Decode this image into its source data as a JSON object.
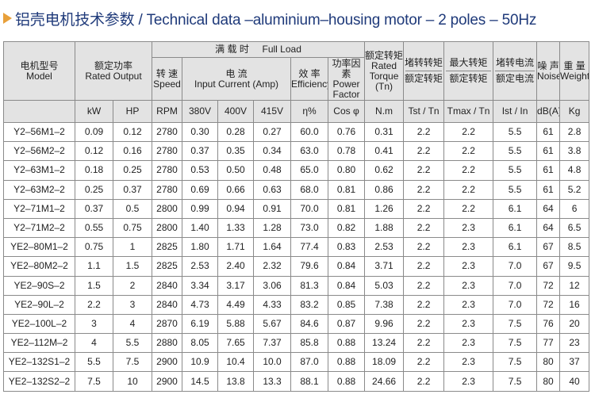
{
  "title": "铝壳电机技术参数 / Technical data –aluminium–housing motor – 2 poles – 50Hz",
  "header": {
    "model_cn": "电机型号",
    "model_en": "Model",
    "rated_output_cn": "额定功率",
    "rated_output_en": "Rated Output",
    "full_load_cn": "满 载 时",
    "full_load_en": "Full Load",
    "speed_cn": "转 速",
    "speed_en": "Speed",
    "current_cn": "电 流",
    "current_en": "Input  Current (Amp)",
    "efficiency_cn": "效 率",
    "efficiency_en": "Efficiency",
    "pf_cn": "功率因素",
    "pf_en": "Power Factor",
    "torque_cn": "额定转矩",
    "torque_en": "Rated Torque (Tn)",
    "locked_torque_cn": "堵转转矩",
    "locked_torque_cn2": "额定转矩",
    "max_torque_cn": "最大转矩",
    "max_torque_cn2": "额定转矩",
    "locked_current_cn": "堵转电流",
    "locked_current_cn2": "额定电流",
    "noise_cn": "噪 声",
    "noise_en": "Noise",
    "weight_cn": "重 量",
    "weight_en": "Weight"
  },
  "units": [
    "kW",
    "HP",
    "RPM",
    "380V",
    "400V",
    "415V",
    "η%",
    "Cos φ",
    "N.m",
    "Tst / Tn",
    "Tmax / Tn",
    "Ist / In",
    "dB(A)",
    "Kg"
  ],
  "rows": [
    [
      "Y2–56M1–2",
      "0.09",
      "0.12",
      "2780",
      "0.30",
      "0.28",
      "0.27",
      "60.0",
      "0.76",
      "0.31",
      "2.2",
      "2.2",
      "5.5",
      "61",
      "2.8"
    ],
    [
      "Y2–56M2–2",
      "0.12",
      "0.16",
      "2780",
      "0.37",
      "0.35",
      "0.34",
      "63.0",
      "0.78",
      "0.41",
      "2.2",
      "2.2",
      "5.5",
      "61",
      "3.8"
    ],
    [
      "Y2–63M1–2",
      "0.18",
      "0.25",
      "2780",
      "0.53",
      "0.50",
      "0.48",
      "65.0",
      "0.80",
      "0.62",
      "2.2",
      "2.2",
      "5.5",
      "61",
      "4.8"
    ],
    [
      "Y2–63M2–2",
      "0.25",
      "0.37",
      "2780",
      "0.69",
      "0.66",
      "0.63",
      "68.0",
      "0.81",
      "0.86",
      "2.2",
      "2.2",
      "5.5",
      "61",
      "5.2"
    ],
    [
      "Y2–71M1–2",
      "0.37",
      "0.5",
      "2800",
      "0.99",
      "0.94",
      "0.91",
      "70.0",
      "0.81",
      "1.26",
      "2.2",
      "2.2",
      "6.1",
      "64",
      "6"
    ],
    [
      "Y2–71M2–2",
      "0.55",
      "0.75",
      "2800",
      "1.40",
      "1.33",
      "1.28",
      "73.0",
      "0.82",
      "1.88",
      "2.2",
      "2.3",
      "6.1",
      "64",
      "6.5"
    ],
    [
      "YE2–80M1–2",
      "0.75",
      "1",
      "2825",
      "1.80",
      "1.71",
      "1.64",
      "77.4",
      "0.83",
      "2.53",
      "2.2",
      "2.3",
      "6.1",
      "67",
      "8.5"
    ],
    [
      "YE2–80M2–2",
      "1.1",
      "1.5",
      "2825",
      "2.53",
      "2.40",
      "2.32",
      "79.6",
      "0.84",
      "3.71",
      "2.2",
      "2.3",
      "7.0",
      "67",
      "9.5"
    ],
    [
      "YE2–90S–2",
      "1.5",
      "2",
      "2840",
      "3.34",
      "3.17",
      "3.06",
      "81.3",
      "0.84",
      "5.03",
      "2.2",
      "2.3",
      "7.0",
      "72",
      "12"
    ],
    [
      "YE2–90L–2",
      "2.2",
      "3",
      "2840",
      "4.73",
      "4.49",
      "4.33",
      "83.2",
      "0.85",
      "7.38",
      "2.2",
      "2.3",
      "7.0",
      "72",
      "16"
    ],
    [
      "YE2–100L–2",
      "3",
      "4",
      "2870",
      "6.19",
      "5.88",
      "5.67",
      "84.6",
      "0.87",
      "9.96",
      "2.2",
      "2.3",
      "7.5",
      "76",
      "20"
    ],
    [
      "YE2–112M–2",
      "4",
      "5.5",
      "2880",
      "8.05",
      "7.65",
      "7.37",
      "85.8",
      "0.88",
      "13.24",
      "2.2",
      "2.3",
      "7.5",
      "77",
      "23"
    ],
    [
      "YE2–132S1–2",
      "5.5",
      "7.5",
      "2900",
      "10.9",
      "10.4",
      "10.0",
      "87.0",
      "0.88",
      "18.09",
      "2.2",
      "2.3",
      "7.5",
      "80",
      "37"
    ],
    [
      "YE2–132S2–2",
      "7.5",
      "10",
      "2900",
      "14.5",
      "13.8",
      "13.3",
      "88.1",
      "0.88",
      "24.66",
      "2.2",
      "2.3",
      "7.5",
      "80",
      "40"
    ]
  ]
}
